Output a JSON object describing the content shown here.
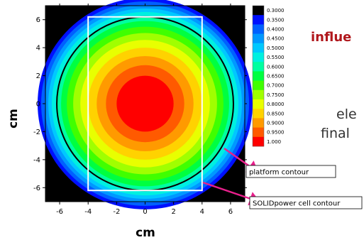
{
  "chart_data": {
    "type": "heatmap",
    "xlabel": "cm",
    "ylabel": "cm",
    "xlim": [
      -7,
      7
    ],
    "ylim": [
      -7,
      7
    ],
    "xticks": [
      "-6",
      "-4",
      "-2",
      "0",
      "2",
      "4",
      "6"
    ],
    "yticks": [
      "6",
      "4",
      "2",
      "0",
      "-2",
      "-4",
      "-6"
    ],
    "colorbar": {
      "levels": [
        "0.3000",
        "0.3500",
        "0.4000",
        "0.4500",
        "0.5000",
        "0.5500",
        "0.6000",
        "0.6500",
        "0.7000",
        "0.7500",
        "0.8000",
        "0.8500",
        "0.9000",
        "0.9500",
        "1.000"
      ],
      "colors": [
        "#000000",
        "#0010ff",
        "#0060ff",
        "#0098ff",
        "#00c8ff",
        "#00f0e0",
        "#00ffa0",
        "#00ff40",
        "#40ff00",
        "#a0ff00",
        "#e8ff00",
        "#ffd200",
        "#ff9a00",
        "#ff5a00",
        "#ff0000"
      ]
    },
    "contour_rings": [
      {
        "level": "1.000",
        "radius": 2.0
      },
      {
        "level": "0.9500",
        "radius": 2.75
      },
      {
        "level": "0.9000",
        "radius": 3.4
      },
      {
        "level": "0.8500",
        "radius": 4.0
      },
      {
        "level": "0.8000",
        "radius": 4.55
      },
      {
        "level": "0.7500",
        "radius": 5.05
      },
      {
        "level": "0.7000",
        "radius": 5.5
      },
      {
        "level": "0.6500",
        "radius": 5.9
      },
      {
        "level": "0.6000",
        "radius": 6.25
      },
      {
        "level": "0.5500",
        "radius": 6.55
      },
      {
        "level": "0.5000",
        "radius": 6.8
      },
      {
        "level": "0.4500",
        "radius": 7.05
      },
      {
        "level": "0.4000",
        "radius": 7.3
      },
      {
        "level": "0.3500",
        "radius": 7.55
      }
    ],
    "annotations": [
      {
        "label": "platform contour",
        "shape": "rectangle",
        "x": [
          -4,
          4
        ],
        "y": [
          -6.2,
          6.2
        ]
      },
      {
        "label": "SOLIDpower cell contour",
        "shape": "circle",
        "radius": 6.2
      }
    ]
  },
  "background_text": {
    "heading": "influe",
    "line1": "ele",
    "line2": "final"
  }
}
